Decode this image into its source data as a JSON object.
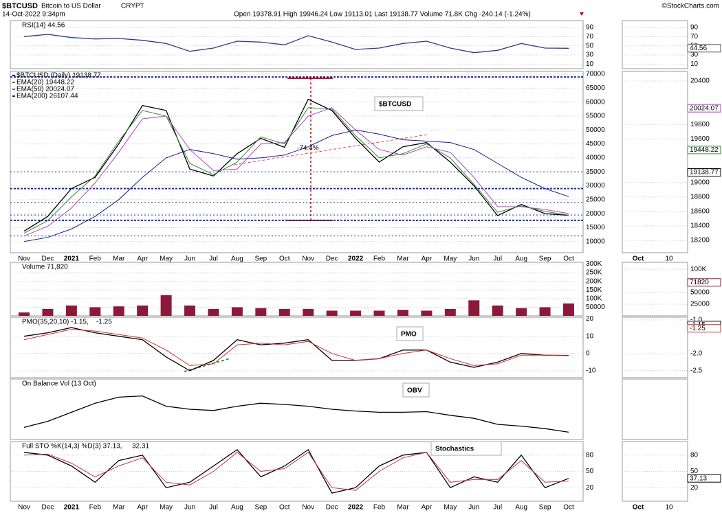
{
  "header": {
    "symbol": "$BTCUSD",
    "name": "Bitcoin to US Dollar",
    "exchange": "CRYPT",
    "date": "14-Oct-2022 9:34pm",
    "quote": "Open 19378.91  High 19946.24  Low 19113.01  Last 19138.77  Volume 71.8K  Chg -240.14 (-1.24%)",
    "credit": "©StockCharts.com"
  },
  "chart_data": [
    {
      "type": "line",
      "title": "RSI(14) 44.56",
      "ylim": [
        0,
        105
      ],
      "yticks": [
        90,
        70,
        50,
        30,
        10
      ],
      "series": [
        {
          "name": "RSI",
          "color": "#2a3a8a",
          "values": [
            70,
            75,
            68,
            65,
            66,
            62,
            55,
            38,
            45,
            60,
            58,
            52,
            72,
            58,
            42,
            45,
            55,
            60,
            45,
            35,
            40,
            55,
            45,
            44.56
          ]
        }
      ],
      "mini": {
        "ylim": [
          0,
          105
        ],
        "yticks": [
          90,
          70,
          50,
          30,
          10
        ],
        "boxes": [
          {
            "value": 44.56,
            "color": "#555555"
          }
        ]
      }
    },
    {
      "type": "line",
      "ylim": [
        6000,
        71000
      ],
      "yticks": [
        70000,
        65000,
        60000,
        55000,
        50000,
        45000,
        40000,
        35000,
        30000,
        25000,
        20000,
        15000,
        10000
      ],
      "categories": [
        "Nov",
        "Dec",
        "2021",
        "Feb",
        "Mar",
        "Apr",
        "May",
        "Jun",
        "Jul",
        "Aug",
        "Sep",
        "Oct",
        "Nov",
        "Dec",
        "2022",
        "Feb",
        "Mar",
        "Apr",
        "May",
        "Jun",
        "Jul",
        "Aug",
        "Sep",
        "Oct"
      ],
      "levels": [
        69000,
        35000,
        29000,
        24000,
        19500,
        17600,
        12000
      ],
      "annotations": [
        "$BTCUSD",
        "-74.4%"
      ],
      "series": [
        {
          "name": "$BTCUSD (Daily) 19138.77",
          "color": "#000000",
          "values": [
            13700,
            19000,
            29000,
            33000,
            45000,
            58800,
            57000,
            36000,
            33500,
            41500,
            47000,
            43800,
            61000,
            57000,
            47000,
            38500,
            44000,
            45500,
            38500,
            30000,
            19300,
            23300,
            20000,
            19400
          ]
        },
        {
          "name": "EMA(20) 19448.22",
          "color": "#2e8b2e",
          "values": [
            13000,
            17500,
            26000,
            33500,
            46000,
            57000,
            55000,
            38000,
            34000,
            38500,
            47500,
            45000,
            58000,
            57500,
            48000,
            40000,
            41500,
            45000,
            40000,
            30500,
            20500,
            22800,
            20800,
            19450
          ]
        },
        {
          "name": "EMA(50) 20024.07",
          "color": "#b040c0",
          "values": [
            12000,
            15500,
            22000,
            31000,
            42000,
            54000,
            55000,
            43000,
            35500,
            36000,
            45000,
            45500,
            55000,
            58000,
            50000,
            43000,
            41000,
            44000,
            42000,
            33000,
            22500,
            22500,
            21500,
            20024
          ]
        },
        {
          "name": "EMA(200) 26107.44",
          "color": "#1a1a8c",
          "values": [
            10000,
            11500,
            14500,
            19000,
            25000,
            33000,
            40000,
            43000,
            41500,
            39500,
            40000,
            41000,
            44000,
            48000,
            50000,
            48500,
            46500,
            46000,
            45500,
            43000,
            38000,
            33000,
            29000,
            26107
          ]
        }
      ],
      "mini": {
        "ylim": [
          18030,
          20533
        ],
        "yticks": [
          20400,
          19800,
          19600,
          19000,
          18800,
          18600,
          18400,
          18200
        ],
        "x": [
          "Oct",
          "10"
        ],
        "boxes": [
          {
            "value": 20024.07,
            "color": "#b040c0"
          },
          {
            "value": 19448.22,
            "color": "#2e8b2e"
          },
          {
            "value": 19138.77,
            "color": "#000000"
          }
        ]
      }
    },
    {
      "type": "bar",
      "title": "Volume 71,820",
      "color": "#8b1a3a",
      "ylim": [
        0,
        310000
      ],
      "yticks": [
        {
          "value": 300000,
          "label": "300K"
        },
        {
          "value": 250000,
          "label": "250K"
        },
        {
          "value": 200000,
          "label": "200K"
        },
        {
          "value": 150000,
          "label": "150K"
        },
        {
          "value": 100000,
          "label": "100K"
        },
        50000
      ],
      "values": [
        20000,
        40000,
        60000,
        50000,
        55000,
        60000,
        120000,
        60000,
        40000,
        50000,
        45000,
        40000,
        40000,
        30000,
        30000,
        30000,
        35000,
        30000,
        40000,
        90000,
        60000,
        45000,
        50000,
        71820
      ],
      "mini": {
        "ylim": [
          0,
          115000
        ],
        "yticks": [
          {
            "value": 100000,
            "label": "100K"
          },
          50000,
          25000
        ],
        "boxes": [
          {
            "value": 71820,
            "color": "#8b1a3a"
          }
        ]
      }
    },
    {
      "type": "line",
      "title": "PMO(35,20,10) -1.15,",
      "subtitle": "-1.25",
      "ylim": [
        -14,
        21
      ],
      "yticks": [
        20,
        10,
        0,
        -10
      ],
      "annotations": [
        "PMO"
      ],
      "series": [
        {
          "name": "PMO",
          "color": "#000000",
          "values": [
            10,
            12,
            15,
            12,
            10,
            8,
            -2,
            -10,
            -4,
            8,
            5,
            6,
            8,
            -4,
            -4,
            -3,
            2,
            2,
            -5,
            -8,
            -5,
            0,
            -1,
            -1.15
          ]
        },
        {
          "name": "Signal",
          "color": "#d03030",
          "values": [
            8,
            11,
            14,
            13,
            11,
            9,
            2,
            -7,
            -6,
            5,
            6,
            5,
            7,
            0,
            -4,
            -3,
            0,
            2,
            -3,
            -7,
            -6,
            -1,
            -1,
            -1.25
          ]
        }
      ],
      "mini": {
        "ylim": [
          -2.71,
          -0.92
        ],
        "yticks": [
          {
            "value": -1,
            "label": "-1.0"
          },
          {
            "value": -2,
            "label": "-2.0"
          },
          -2.5
        ],
        "boxes": [
          {
            "value": -1.15,
            "color": "#000000"
          },
          {
            "value": -1.25,
            "color": "#d03030"
          }
        ]
      }
    },
    {
      "type": "line",
      "title": "On Balance Vol (13 Oct)",
      "ylim": [
        0,
        100
      ],
      "annotations": [
        "OBV"
      ],
      "series": [
        {
          "name": "OBV",
          "color": "#000000",
          "values": [
            20,
            30,
            45,
            60,
            70,
            72,
            55,
            50,
            48,
            55,
            60,
            58,
            55,
            50,
            47,
            45,
            45,
            46,
            40,
            35,
            25,
            22,
            18,
            12
          ]
        }
      ]
    },
    {
      "type": "line",
      "title": "Full STO %K(14,3) %D(3) 37.13,",
      "subtitle": "32.31",
      "ylim": [
        -5,
        105
      ],
      "yticks": [
        80,
        50,
        20
      ],
      "annotations": [
        "Stochastics"
      ],
      "categories": [
        "Nov",
        "Dec",
        "2021",
        "Feb",
        "Mar",
        "Apr",
        "May",
        "Jun",
        "Jul",
        "Aug",
        "Sep",
        "Oct",
        "Nov",
        "Dec",
        "2022",
        "Feb",
        "Mar",
        "Apr",
        "May",
        "Jun",
        "Jul",
        "Aug",
        "Sep",
        "Oct"
      ],
      "series": [
        {
          "name": "%K",
          "color": "#000000",
          "values": [
            85,
            80,
            60,
            30,
            70,
            80,
            20,
            30,
            60,
            90,
            40,
            60,
            90,
            10,
            20,
            60,
            80,
            85,
            20,
            40,
            30,
            80,
            20,
            37.13
          ]
        },
        {
          "name": "%D",
          "color": "#c03050",
          "values": [
            80,
            82,
            65,
            40,
            60,
            75,
            30,
            25,
            50,
            85,
            50,
            55,
            85,
            20,
            15,
            50,
            75,
            85,
            30,
            35,
            35,
            70,
            30,
            32.31
          ]
        }
      ],
      "mini": {
        "ylim": [
          -5,
          105
        ],
        "yticks": [
          80,
          50,
          20
        ],
        "x": [
          "Oct",
          "10"
        ],
        "boxes": [
          {
            "value": 37.13,
            "color": "#000000"
          }
        ]
      }
    }
  ]
}
